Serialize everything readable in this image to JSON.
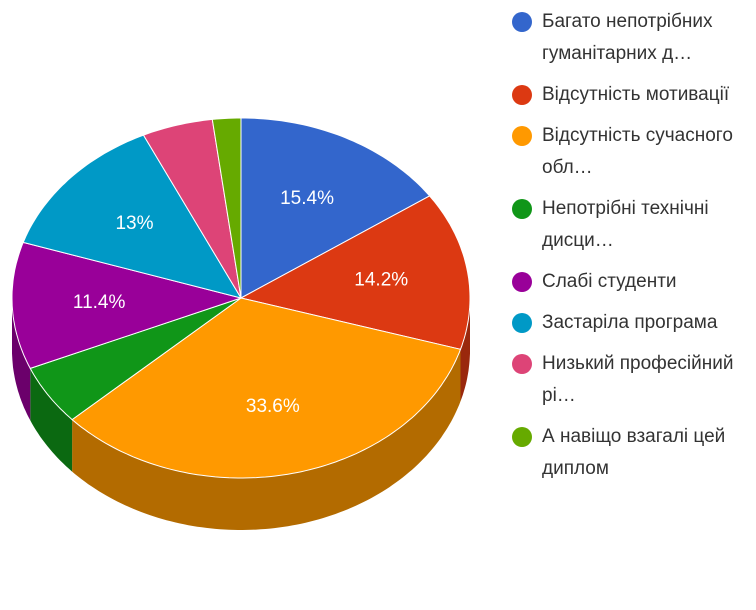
{
  "chart_data": {
    "type": "pie3d",
    "categories": [
      "Багато непотрібних гуманітарних д…",
      "Відсутність мотивації",
      "Відсутність сучасного обл…",
      "Непотрібні технічні дисци…",
      "Слабі студенти",
      "Застаріла програма",
      "Низький професійний рі…",
      "А навіщо взагалі цей диплом"
    ],
    "values": [
      15.4,
      14.2,
      33.6,
      5.4,
      11.4,
      13,
      5,
      2
    ],
    "value_labels": [
      "15.4%",
      "14.2%",
      "33.6%",
      null,
      "11.4%",
      "13%",
      null,
      null
    ],
    "colors": [
      "#3366cc",
      "#dc3912",
      "#ff9900",
      "#109618",
      "#990099",
      "#0099c6",
      "#dd4477",
      "#66aa00"
    ],
    "legend": "right"
  }
}
